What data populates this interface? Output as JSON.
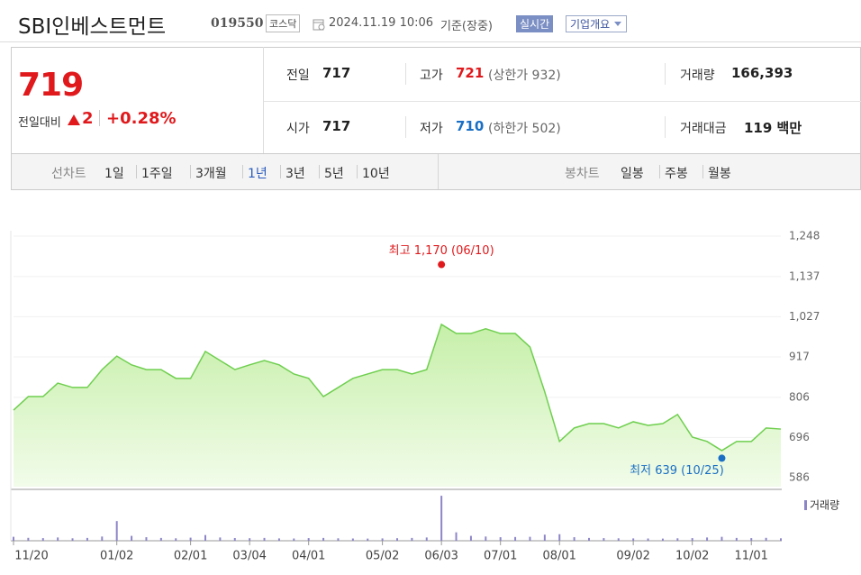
{
  "header": {
    "name": "SBI인베스트먼트",
    "code": "019550",
    "market": "코스닥",
    "datetime": "2024.11.19 10:06",
    "basis": "기준(장중)",
    "realtime": "실시간",
    "company_button": "기업개요"
  },
  "summary": {
    "price": "719",
    "change_label": "전일대비",
    "change": "2",
    "change_pct": "+0.28%",
    "prev_close": {
      "label": "전일",
      "value": "717"
    },
    "high": {
      "label": "고가",
      "value": "721",
      "limit": "(상한가 932)"
    },
    "volume": {
      "label": "거래량",
      "value": "166,393"
    },
    "open": {
      "label": "시가",
      "value": "717"
    },
    "low": {
      "label": "저가",
      "value": "710",
      "limit": "(하한가 502)"
    },
    "amount": {
      "label": "거래대금",
      "value": "119 백만"
    }
  },
  "tabs": {
    "line_label": "선차트",
    "line_items": [
      "1일",
      "1주일",
      "3개월",
      "1년",
      "3년",
      "5년",
      "10년"
    ],
    "active": "1년",
    "candle_label": "봉차트",
    "candle_items": [
      "일봉",
      "주봉",
      "월봉"
    ]
  },
  "chart_data": [
    {
      "type": "area",
      "categories": [
        "11/20",
        null,
        null,
        null,
        null,
        null,
        null,
        "01/02",
        null,
        null,
        null,
        null,
        "02/01",
        null,
        null,
        null,
        "03/04",
        null,
        null,
        null,
        "04/01",
        null,
        null,
        null,
        null,
        "05/02",
        null,
        null,
        null,
        "06/03",
        null,
        null,
        null,
        "07/01",
        null,
        null,
        null,
        "08/01",
        null,
        null,
        null,
        null,
        "09/02",
        null,
        null,
        null,
        "10/02",
        null,
        null,
        null,
        "11/01",
        null,
        null
      ],
      "values": [
        771,
        808,
        808,
        845,
        833,
        833,
        882,
        919,
        895,
        882,
        882,
        858,
        858,
        932,
        907,
        882,
        895,
        907,
        895,
        870,
        858,
        808,
        833,
        858,
        870,
        882,
        882,
        870,
        882,
        1006,
        981,
        981,
        994,
        981,
        981,
        944,
        821,
        685,
        722,
        734,
        734,
        722,
        739,
        729,
        734,
        759,
        697,
        685,
        660,
        685,
        685,
        722,
        719
      ],
      "color": "#6fcf4f",
      "fill": "#d3f3bd",
      "ylim": [
        561,
        1290
      ],
      "yticks": [
        586,
        696,
        806,
        917,
        {
          "value": 1027,
          "label": "1,027"
        },
        {
          "value": 1137,
          "label": "1,137"
        },
        {
          "value": 1248,
          "label": "1,248"
        }
      ],
      "grid": true,
      "annotations": [
        {
          "label": "최고 1,170 (06/10)",
          "value": 1170,
          "color": "#e0191c"
        },
        {
          "label": "최저 639 (10/25)",
          "value": 639,
          "color": "#1a6fc4"
        }
      ]
    },
    {
      "type": "bar",
      "series": [
        {
          "name": "거래량",
          "color": "#8c86c8",
          "values": [
            420000,
            310000,
            280000,
            350000,
            260000,
            300000,
            450000,
            2100000,
            520000,
            380000,
            300000,
            260000,
            330000,
            610000,
            350000,
            290000,
            270000,
            300000,
            250000,
            240000,
            280000,
            300000,
            260000,
            240000,
            230000,
            250000,
            270000,
            300000,
            350000,
            4800000,
            900000,
            520000,
            450000,
            380000,
            400000,
            420000,
            650000,
            700000,
            380000,
            300000,
            280000,
            260000,
            250000,
            240000,
            230000,
            260000,
            280000,
            350000,
            420000,
            300000,
            280000,
            310000,
            260000
          ]
        }
      ],
      "ylim": [
        0,
        5000000
      ],
      "legend": "top-right"
    }
  ]
}
